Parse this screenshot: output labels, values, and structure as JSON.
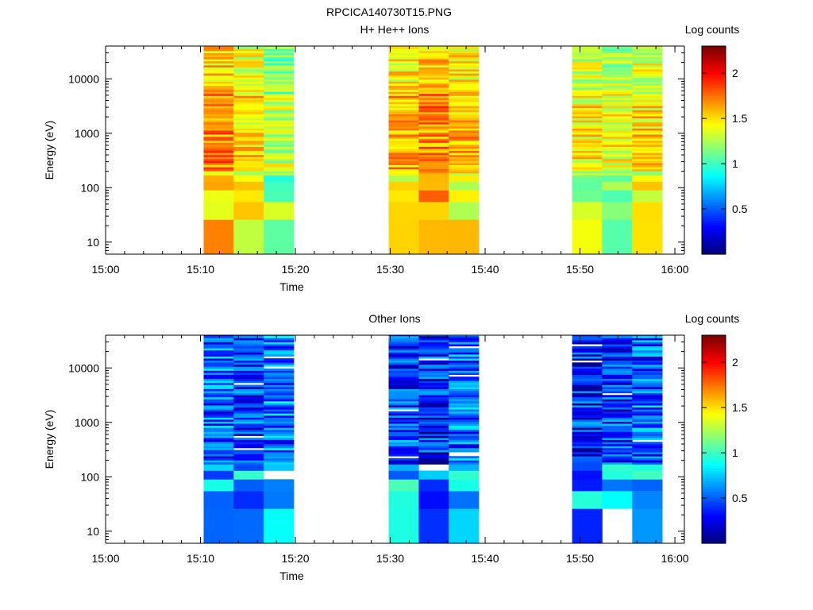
{
  "figure": {
    "title": "RPCICA140730T15.PNG"
  },
  "colorbar": {
    "label": "Log counts",
    "min": 0,
    "max": 2.3,
    "ticks": [
      0.5,
      1,
      1.5,
      2
    ],
    "tick_labels": [
      "0.5",
      "1",
      "1.5",
      "2"
    ],
    "colormap": "jet"
  },
  "chart_data": [
    {
      "type": "heatmap",
      "title": "H+ He++ Ions",
      "xlabel": "Time",
      "ylabel": "Energy (eV)",
      "yscale": "log",
      "xlim": [
        "15:00",
        "16:01"
      ],
      "ylim": [
        6,
        40000
      ],
      "x_ticks": [
        "15:00",
        "15:10",
        "15:20",
        "15:30",
        "15:40",
        "15:50",
        "16:00"
      ],
      "y_ticks": [
        10,
        100,
        1000,
        10000
      ],
      "y_tick_labels": [
        "10",
        "100",
        "1000",
        "10000"
      ],
      "time_bins": [
        [
          "15:10:20",
          "15:13:30"
        ],
        [
          "15:13:30",
          "15:16:40"
        ],
        [
          "15:16:40",
          "15:19:50"
        ],
        [
          "15:29:50",
          "15:33:00"
        ],
        [
          "15:33:00",
          "15:36:10"
        ],
        [
          "15:36:10",
          "15:39:20"
        ],
        [
          "15:49:10",
          "15:52:20"
        ],
        [
          "15:52:20",
          "15:55:30"
        ],
        [
          "15:55:30",
          "15:58:40"
        ]
      ],
      "approx_level_by_bin": [
        1.55,
        1.35,
        1.15,
        1.45,
        1.55,
        1.45,
        1.3,
        1.25,
        1.35
      ],
      "colorbar_label": "Log counts"
    },
    {
      "type": "heatmap",
      "title": "Other Ions",
      "xlabel": "Time",
      "ylabel": "Energy (eV)",
      "yscale": "log",
      "xlim": [
        "15:00",
        "16:01"
      ],
      "ylim": [
        6,
        40000
      ],
      "x_ticks": [
        "15:00",
        "15:10",
        "15:20",
        "15:30",
        "15:40",
        "15:50",
        "16:00"
      ],
      "y_ticks": [
        10,
        100,
        1000,
        10000
      ],
      "y_tick_labels": [
        "10",
        "100",
        "1000",
        "10000"
      ],
      "time_bins": [
        [
          "15:10:20",
          "15:13:30"
        ],
        [
          "15:13:30",
          "15:16:40"
        ],
        [
          "15:16:40",
          "15:19:50"
        ],
        [
          "15:29:50",
          "15:33:00"
        ],
        [
          "15:33:00",
          "15:36:10"
        ],
        [
          "15:36:10",
          "15:39:20"
        ],
        [
          "15:49:10",
          "15:52:20"
        ],
        [
          "15:52:20",
          "15:55:30"
        ],
        [
          "15:55:30",
          "15:58:40"
        ]
      ],
      "approx_level_by_bin": [
        0.5,
        0.45,
        0.55,
        0.45,
        0.35,
        0.5,
        0.35,
        0.4,
        0.5
      ],
      "colorbar_label": "Log counts"
    }
  ]
}
